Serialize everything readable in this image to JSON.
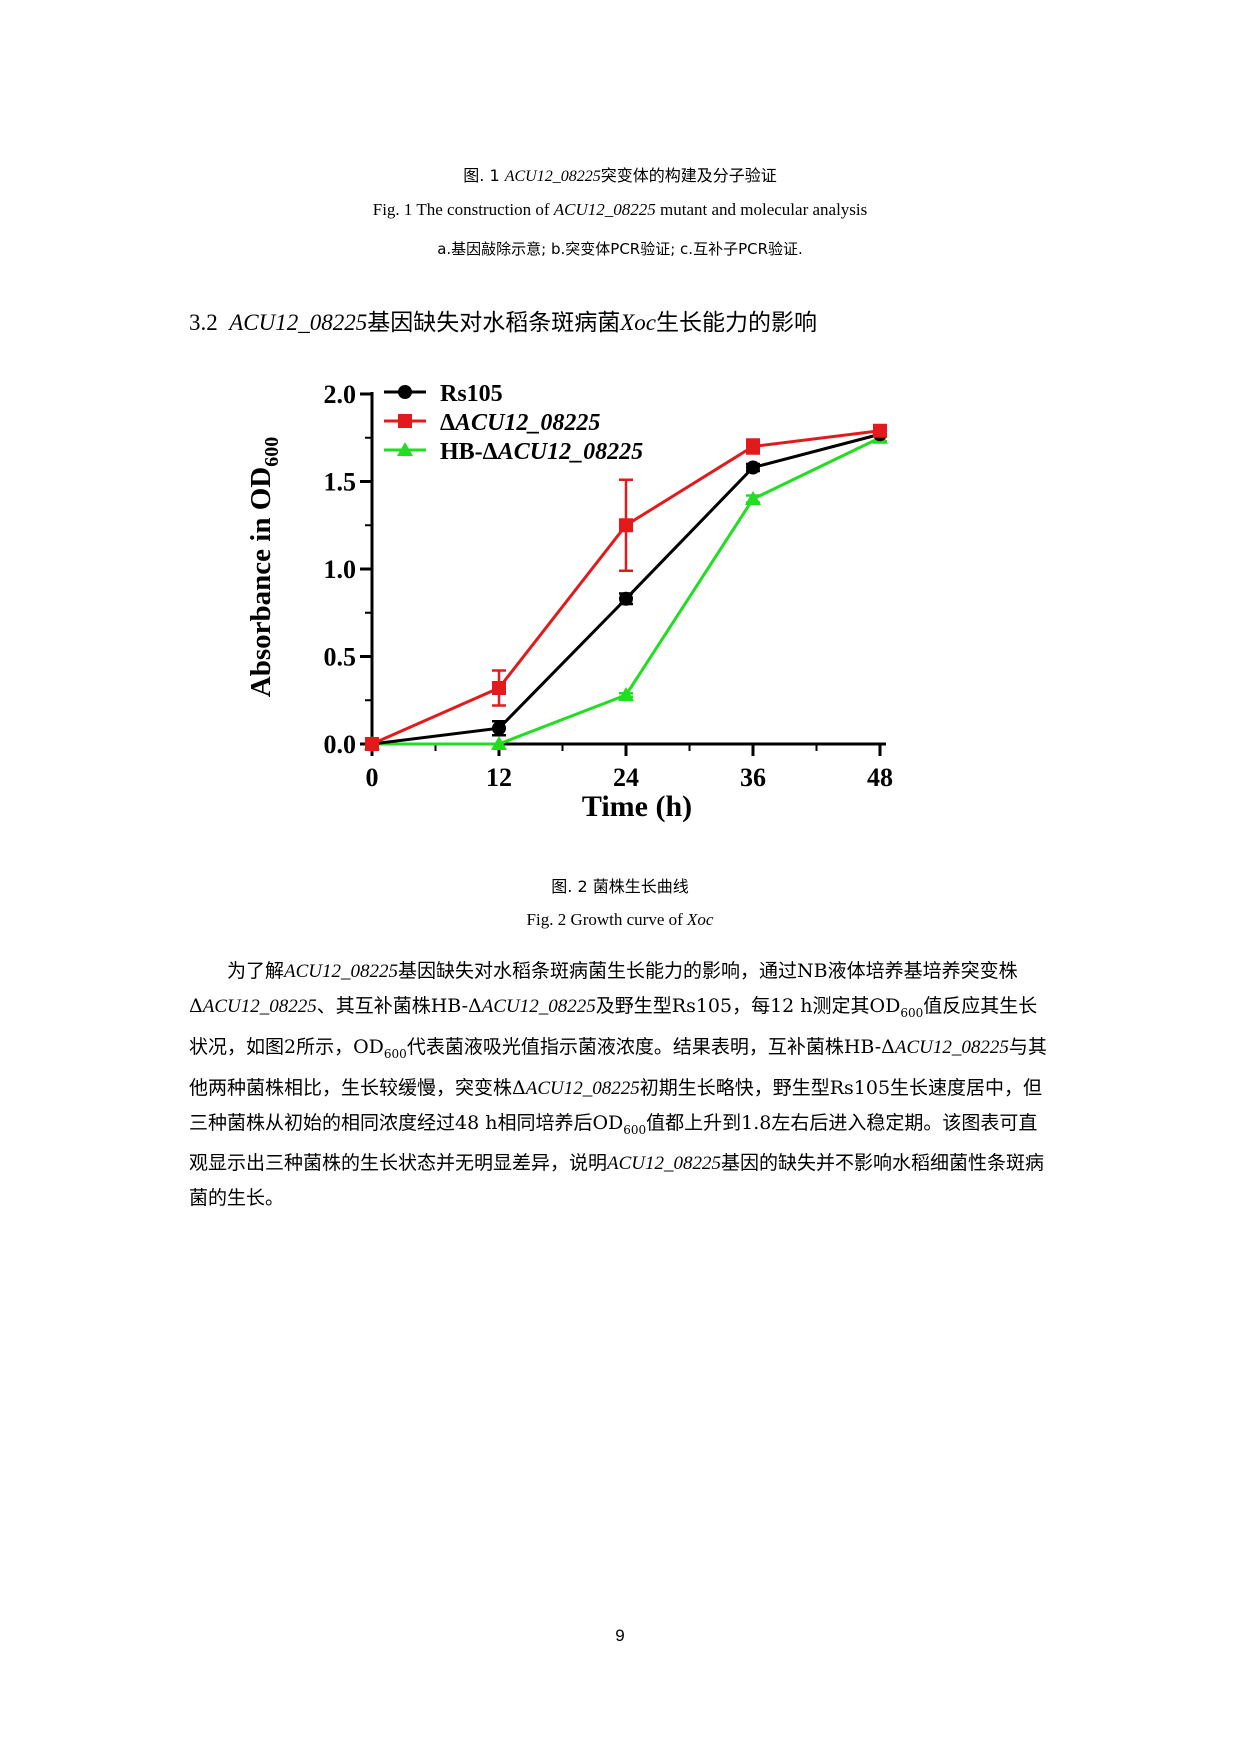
{
  "fig1": {
    "caption_cn_prefix": "图. 1 ",
    "caption_cn_gene": "ACU12_08225",
    "caption_cn_suffix": "突变体的构建及分子验证",
    "caption_en_prefix": "Fig. 1 The construction of ",
    "caption_en_gene": "ACU12_08225",
    "caption_en_suffix": " mutant and molecular analysis",
    "subcaption": "a.基因敲除示意; b.突变体PCR验证; c.互补子PCR验证."
  },
  "section": {
    "number": "3.2",
    "gene": "ACU12_08225",
    "title_mid": "基因缺失对水稻条斑病菌",
    "organism": "Xoc",
    "title_end": "生长能力的影响"
  },
  "chart_data": {
    "type": "line",
    "xlabel": "Time (h)",
    "ylabel": "Absorbance in OD",
    "ylabel_sub": "600",
    "x": [
      0,
      12,
      24,
      36,
      48
    ],
    "xlim": [
      0,
      48
    ],
    "ylim": [
      0,
      2.0
    ],
    "xticks": [
      "0",
      "12",
      "24",
      "36",
      "48"
    ],
    "yticks": [
      "0.0",
      "0.5",
      "1.0",
      "1.5",
      "2.0"
    ],
    "legend_position": "top-left",
    "series": [
      {
        "name": "Rs105",
        "color": "#000000",
        "marker": "circle",
        "values": [
          0.0,
          0.09,
          0.83,
          1.58,
          1.77
        ],
        "errors": [
          0.0,
          0.04,
          0.03,
          0.02,
          0.01
        ]
      },
      {
        "name": "ΔACU12_08225",
        "color": "#e31a1c",
        "marker": "square",
        "values": [
          0.0,
          0.32,
          1.25,
          1.7,
          1.79
        ],
        "errors": [
          0.0,
          0.1,
          0.26,
          0.04,
          0.02
        ]
      },
      {
        "name": "HB-ΔACU12_08225",
        "color": "#22dd22",
        "marker": "triangle",
        "values": [
          0.0,
          0.0,
          0.28,
          1.4,
          1.75
        ],
        "errors": [
          0.0,
          0.0,
          0.01,
          0.02,
          0.02
        ]
      }
    ]
  },
  "fig2": {
    "caption_cn": "图. 2  菌株生长曲线",
    "caption_en_prefix": "Fig. 2 Growth curve of ",
    "caption_en_org": "Xoc"
  },
  "paragraph": {
    "s1": "为了解",
    "g1": "ACU12_08225",
    "s2": "基因缺失对水稻条斑病菌生长能力的影响，通过NB液体培养基培养突变株Δ",
    "g2": "ACU12_08225",
    "s3": "、其互补菌株HB-Δ",
    "g3": "ACU12_08225",
    "s4": "及野生型Rs105，每12 h测定其OD",
    "sub1": "600",
    "s5": "值反应其生长状况，如图2所示，OD",
    "sub2": "600",
    "s6": "代表菌液吸光值指示菌液浓度。结果表明，互补菌株HB-Δ",
    "g4": "ACU12_08225",
    "s7": "与其他两种菌株相比，生长较缓慢，突变株Δ",
    "g5": "ACU12_08225",
    "s8": "初期生长略快，野生型Rs105生长速度居中，但三种菌株从初始的相同浓度经过48 h相同培养后OD",
    "sub3": "600",
    "s9": "值都上升到1.8左右后进入稳定期。该图表可直观显示出三种菌株的生长状态并无明显差异，说明",
    "g6": "ACU12_08225",
    "s10": "基因的缺失并不影响水稻细菌性条斑病菌的生长。"
  },
  "page_number": "9"
}
